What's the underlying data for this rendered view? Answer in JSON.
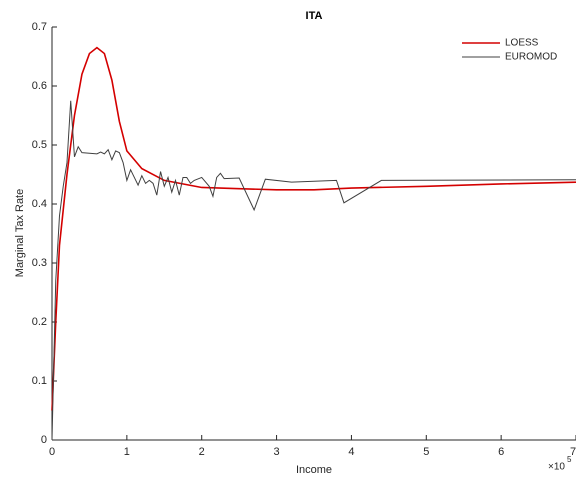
{
  "chart_data": {
    "type": "line",
    "title": "ITA",
    "x_label": "Income",
    "y_label": "Marginal Tax Rate",
    "x_multiplier": {
      "base": "×10",
      "exponent": "5"
    },
    "legend_position": "upper right",
    "xlim": [
      0,
      700000
    ],
    "xticks": [
      0,
      {
        "value": 100000,
        "label": "1"
      },
      {
        "value": 200000,
        "label": "2"
      },
      {
        "value": 300000,
        "label": "3"
      },
      {
        "value": 400000,
        "label": "4"
      },
      {
        "value": 500000,
        "label": "5"
      },
      {
        "value": 600000,
        "label": "6"
      },
      {
        "value": 700000,
        "label": "7"
      }
    ],
    "ylim": [
      0,
      0.7
    ],
    "yticks": [
      0,
      0.1,
      0.2,
      0.3,
      0.4,
      0.5,
      0.6,
      0.7
    ],
    "series": [
      {
        "name": "LOESS",
        "color": "#d40000",
        "width": 1.6,
        "x": [
          0,
          5000,
          10000,
          20000,
          30000,
          40000,
          50000,
          60000,
          70000,
          80000,
          90000,
          100000,
          120000,
          150000,
          200000,
          250000,
          300000,
          350000,
          400000,
          500000,
          600000,
          700000
        ],
        "values": [
          0.05,
          0.2,
          0.33,
          0.45,
          0.55,
          0.62,
          0.655,
          0.665,
          0.655,
          0.61,
          0.54,
          0.49,
          0.46,
          0.44,
          0.428,
          0.426,
          0.424,
          0.424,
          0.427,
          0.43,
          0.434,
          0.437
        ]
      },
      {
        "name": "EUROMOD",
        "color": "#404040",
        "width": 1,
        "x": [
          0,
          5000,
          10000,
          15000,
          20000,
          25000,
          30000,
          35000,
          40000,
          50000,
          60000,
          65000,
          70000,
          75000,
          80000,
          85000,
          90000,
          95000,
          100000,
          105000,
          110000,
          115000,
          120000,
          125000,
          130000,
          135000,
          140000,
          145000,
          150000,
          155000,
          160000,
          165000,
          170000,
          175000,
          180000,
          185000,
          190000,
          200000,
          210000,
          215000,
          220000,
          225000,
          230000,
          250000,
          270000,
          285000,
          320000,
          380000,
          390000,
          440000,
          700000
        ],
        "values": [
          0.0,
          0.27,
          0.38,
          0.43,
          0.47,
          0.575,
          0.48,
          0.497,
          0.487,
          0.486,
          0.485,
          0.488,
          0.485,
          0.492,
          0.475,
          0.49,
          0.487,
          0.47,
          0.44,
          0.458,
          0.445,
          0.432,
          0.448,
          0.435,
          0.44,
          0.435,
          0.415,
          0.455,
          0.43,
          0.445,
          0.42,
          0.44,
          0.415,
          0.445,
          0.445,
          0.435,
          0.44,
          0.445,
          0.43,
          0.413,
          0.445,
          0.452,
          0.443,
          0.444,
          0.39,
          0.442,
          0.437,
          0.44,
          0.402,
          0.44,
          0.441
        ]
      }
    ]
  }
}
